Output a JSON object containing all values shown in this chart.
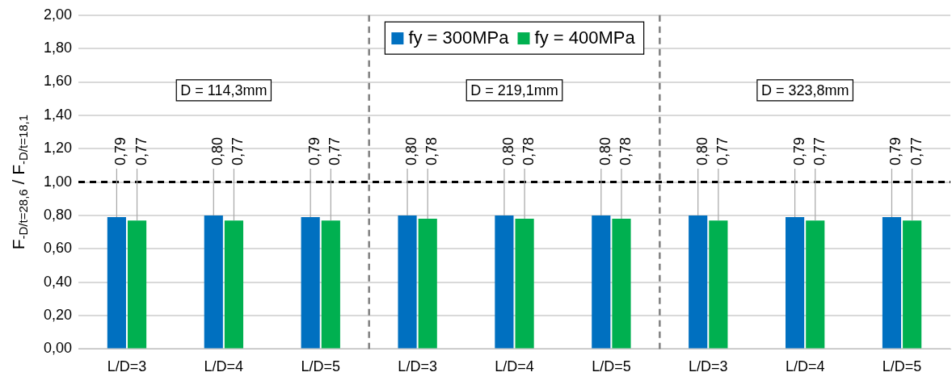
{
  "chart_data": {
    "type": "bar",
    "categories": [
      "L/D=3",
      "L/D=4",
      "L/D=5",
      "L/D=3",
      "L/D=4",
      "L/D=5",
      "L/D=3",
      "L/D=4",
      "L/D=5"
    ],
    "series": [
      {
        "name": "fy = 300MPa",
        "color": "#0070c0",
        "values": [
          0.79,
          0.8,
          0.79,
          0.8,
          0.8,
          0.8,
          0.8,
          0.79,
          0.79
        ],
        "value_labels": [
          "0,79",
          "0,80",
          "0,79",
          "0,80",
          "0,80",
          "0,80",
          "0,80",
          "0,79",
          "0,79"
        ]
      },
      {
        "name": "fy = 400MPa",
        "color": "#00b050",
        "values": [
          0.77,
          0.77,
          0.77,
          0.78,
          0.78,
          0.78,
          0.77,
          0.77,
          0.77
        ],
        "value_labels": [
          "0,77",
          "0,77",
          "0,77",
          "0,78",
          "0,78",
          "0,78",
          "0,77",
          "0,77",
          "0,77"
        ]
      }
    ],
    "ylabel": "F$_{-D/t=28,6}$ / F$_{-D/t=18,1}$",
    "ylim": [
      0,
      2
    ],
    "yticks": [
      {
        "value": 0,
        "label": "0,00"
      },
      {
        "value": 0.2,
        "label": "0,20"
      },
      {
        "value": 0.4,
        "label": "0,40"
      },
      {
        "value": 0.6,
        "label": "0,60"
      },
      {
        "value": 0.8,
        "label": "0,80"
      },
      {
        "value": 1,
        "label": "1,00"
      },
      {
        "value": 1.2,
        "label": "1,20"
      },
      {
        "value": 1.4,
        "label": "1,40"
      },
      {
        "value": 1.6,
        "label": "1,60"
      },
      {
        "value": 1.8,
        "label": "1,80"
      },
      {
        "value": 2,
        "label": "2,00"
      }
    ],
    "grid": "y",
    "legend": "top",
    "ref_lines": [
      {
        "axis": "y",
        "value": 1,
        "color": "#000000",
        "line_style": "dashed"
      }
    ],
    "annotations": [
      "D = 114,3mm",
      "D = 219,1mm",
      "D = 323,8mm"
    ]
  }
}
